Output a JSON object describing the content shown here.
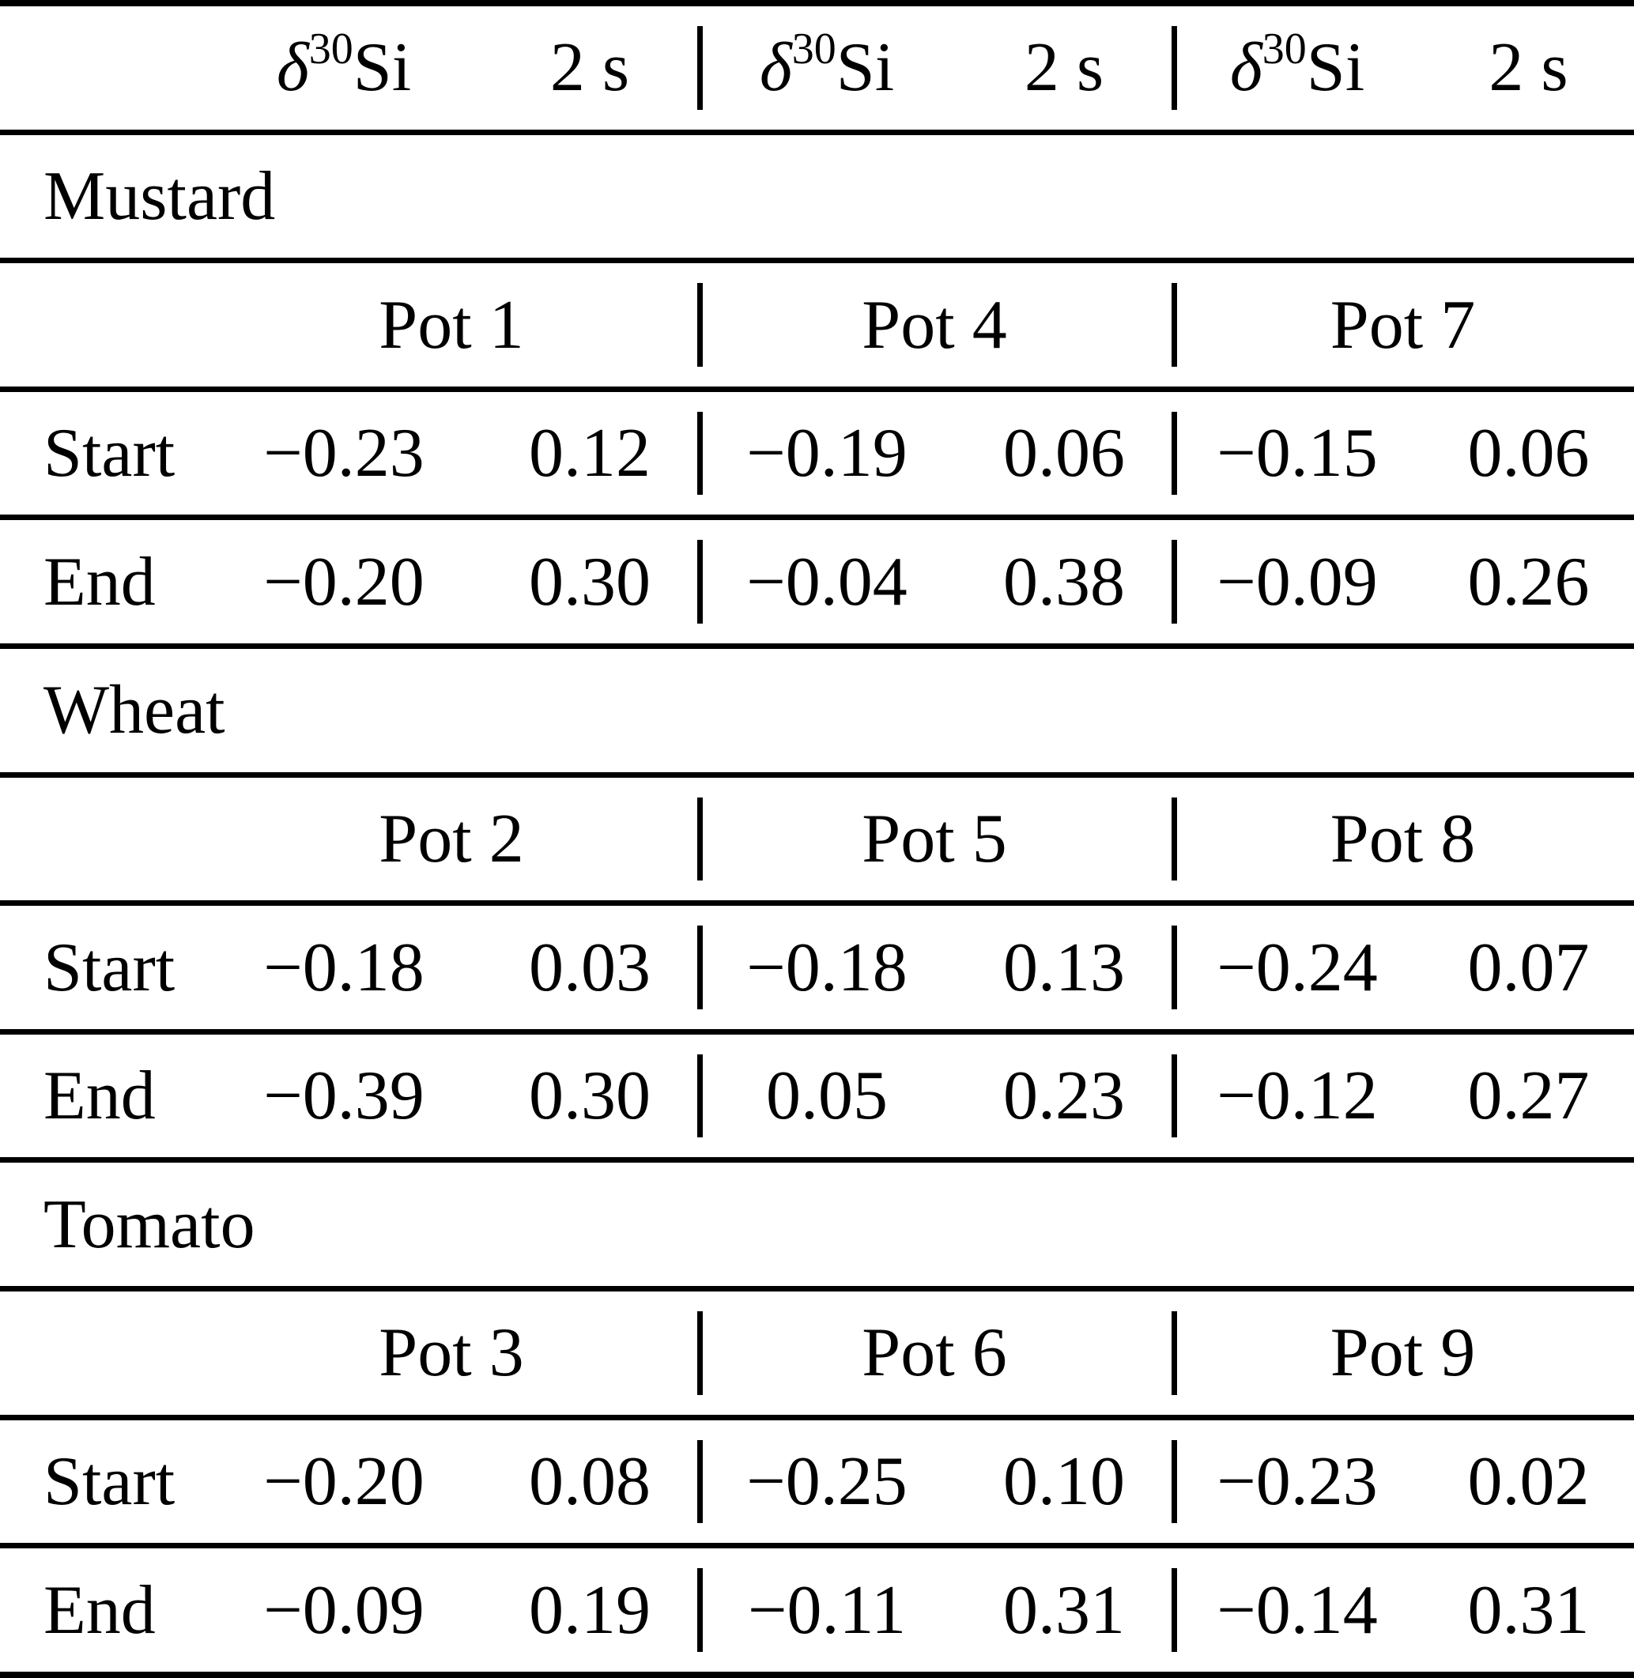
{
  "colors": {
    "background": "#ffffff",
    "text": "#000000",
    "rule": "#000000"
  },
  "table": {
    "header": {
      "delta": "δ",
      "mass": "30",
      "element": "Si",
      "sigma": "2 s"
    },
    "sections": [
      {
        "name": "Mustard",
        "pots": [
          "Pot 1",
          "Pot 4",
          "Pot 7"
        ],
        "rows": [
          {
            "label": "Start",
            "values": [
              "−0.23",
              "0.12",
              "−0.19",
              "0.06",
              "−0.15",
              "0.06"
            ]
          },
          {
            "label": "End",
            "values": [
              "−0.20",
              "0.30",
              "−0.04",
              "0.38",
              "−0.09",
              "0.26"
            ]
          }
        ]
      },
      {
        "name": "Wheat",
        "pots": [
          "Pot 2",
          "Pot 5",
          "Pot 8"
        ],
        "rows": [
          {
            "label": "Start",
            "values": [
              "−0.18",
              "0.03",
              "−0.18",
              "0.13",
              "−0.24",
              "0.07"
            ]
          },
          {
            "label": "End",
            "values": [
              "−0.39",
              "0.30",
              "0.05",
              "0.23",
              "−0.12",
              "0.27"
            ]
          }
        ]
      },
      {
        "name": "Tomato",
        "pots": [
          "Pot 3",
          "Pot 6",
          "Pot 9"
        ],
        "rows": [
          {
            "label": "Start",
            "values": [
              "−0.20",
              "0.08",
              "−0.25",
              "0.10",
              "−0.23",
              "0.02"
            ]
          },
          {
            "label": "End",
            "values": [
              "−0.09",
              "0.19",
              "−0.11",
              "0.31",
              "−0.14",
              "0.31"
            ]
          }
        ]
      }
    ]
  }
}
